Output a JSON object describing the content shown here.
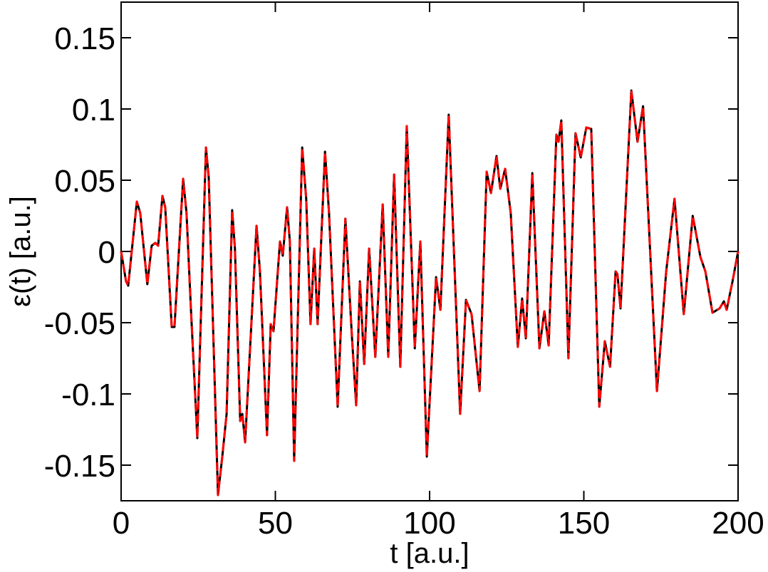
{
  "chart_data": {
    "type": "line",
    "xlabel": "t [a.u.]",
    "ylabel": "ε(t) [a.u.]",
    "xlim": [
      0,
      200
    ],
    "xticks": [
      0,
      50,
      100,
      150,
      200
    ],
    "ylim": [
      -0.175,
      0.175
    ],
    "yticks": [
      -0.15,
      -0.1,
      -0.05,
      0,
      0.05,
      0.1,
      0.15
    ],
    "x": [
      0,
      1.6,
      2.3,
      5.1,
      6.2,
      8.5,
      9.9,
      11.1,
      12,
      13.4,
      14.3,
      16.4,
      17.3,
      20.1,
      21.2,
      22.6,
      24.7,
      27.5,
      28.4,
      31.4,
      32.8,
      34.2,
      36,
      36.9,
      38.6,
      39.3,
      40.2,
      43.9,
      45,
      47.3,
      48.5,
      49.4,
      51.5,
      52.4,
      53.8,
      54.7,
      56.1,
      58.7,
      60,
      61.4,
      62.6,
      63.7,
      66.1,
      67.4,
      70.2,
      72.7,
      74.8,
      76.2,
      77.4,
      78.8,
      80.4,
      82.4,
      84.8,
      86.6,
      88.5,
      90.5,
      92.6,
      95.2,
      97,
      99.1,
      102.1,
      103.5,
      106.2,
      109.9,
      111.8,
      113.6,
      116.2,
      118.5,
      119.9,
      121.7,
      122.9,
      124.5,
      126.3,
      128.6,
      130,
      131.2,
      133.3,
      135.6,
      137.2,
      138.6,
      141.1,
      141.8,
      142.7,
      145,
      147.3,
      149,
      150.8,
      152.4,
      155,
      156.8,
      158.5,
      160.3,
      160.9,
      161.9,
      165.4,
      167.4,
      169.2,
      173.7,
      176.7,
      179.4,
      182.4,
      185.3,
      187.8,
      189.4,
      191.7,
      194,
      195.4,
      196.3,
      198.2,
      200
    ],
    "series": [
      {
        "color": "#000000",
        "dash": false,
        "values": [
          0,
          -0.021,
          -0.024,
          0.035,
          0.027,
          -0.023,
          0.004,
          0.006,
          0.004,
          0.039,
          0.031,
          -0.053,
          -0.053,
          0.051,
          0.027,
          -0.039,
          -0.131,
          0.073,
          0.052,
          -0.171,
          -0.144,
          -0.114,
          0.029,
          0.002,
          -0.119,
          -0.114,
          -0.134,
          0.018,
          -0.014,
          -0.129,
          -0.051,
          -0.056,
          0.007,
          -0.003,
          0.031,
          0.007,
          -0.147,
          0.073,
          0.037,
          -0.051,
          0.002,
          -0.051,
          0.07,
          0.027,
          -0.109,
          0.023,
          -0.059,
          -0.108,
          -0.021,
          -0.079,
          0.002,
          -0.074,
          0.033,
          -0.074,
          0.054,
          -0.081,
          0.088,
          -0.068,
          0.007,
          -0.144,
          -0.018,
          -0.041,
          0.096,
          -0.114,
          -0.034,
          -0.044,
          -0.098,
          0.056,
          0.041,
          0.067,
          0.044,
          0.058,
          0.027,
          -0.067,
          -0.033,
          -0.061,
          0.055,
          -0.068,
          -0.042,
          -0.066,
          0.082,
          0.077,
          0.092,
          -0.075,
          0.083,
          0.066,
          0.087,
          0.086,
          -0.109,
          -0.063,
          -0.081,
          -0.014,
          -0.016,
          -0.04,
          0.113,
          0.077,
          0.102,
          -0.098,
          -0.014,
          0.037,
          -0.044,
          0.025,
          -0.004,
          -0.014,
          -0.043,
          -0.04,
          -0.035,
          -0.041,
          -0.021,
          0
        ]
      },
      {
        "color": "#ff0000",
        "dash": true,
        "values": [
          0,
          -0.021,
          -0.024,
          0.035,
          0.027,
          -0.023,
          0.004,
          0.006,
          0.004,
          0.039,
          0.031,
          -0.053,
          -0.053,
          0.051,
          0.027,
          -0.039,
          -0.131,
          0.073,
          0.052,
          -0.171,
          -0.144,
          -0.114,
          0.029,
          0.002,
          -0.119,
          -0.114,
          -0.134,
          0.018,
          -0.014,
          -0.129,
          -0.051,
          -0.056,
          0.007,
          -0.003,
          0.031,
          0.007,
          -0.147,
          0.073,
          0.037,
          -0.051,
          0.002,
          -0.051,
          0.07,
          0.027,
          -0.109,
          0.023,
          -0.059,
          -0.108,
          -0.021,
          -0.079,
          0.002,
          -0.074,
          0.033,
          -0.074,
          0.054,
          -0.081,
          0.088,
          -0.068,
          0.007,
          -0.144,
          -0.018,
          -0.041,
          0.096,
          -0.114,
          -0.034,
          -0.044,
          -0.098,
          0.056,
          0.041,
          0.067,
          0.044,
          0.058,
          0.027,
          -0.067,
          -0.033,
          -0.061,
          0.055,
          -0.068,
          -0.042,
          -0.066,
          0.082,
          0.077,
          0.092,
          -0.075,
          0.083,
          0.066,
          0.087,
          0.086,
          -0.109,
          -0.063,
          -0.081,
          -0.014,
          -0.016,
          -0.04,
          0.113,
          0.077,
          0.102,
          -0.098,
          -0.014,
          0.037,
          -0.044,
          0.025,
          -0.004,
          -0.014,
          -0.043,
          -0.04,
          -0.035,
          -0.041,
          -0.021,
          0
        ]
      }
    ]
  }
}
